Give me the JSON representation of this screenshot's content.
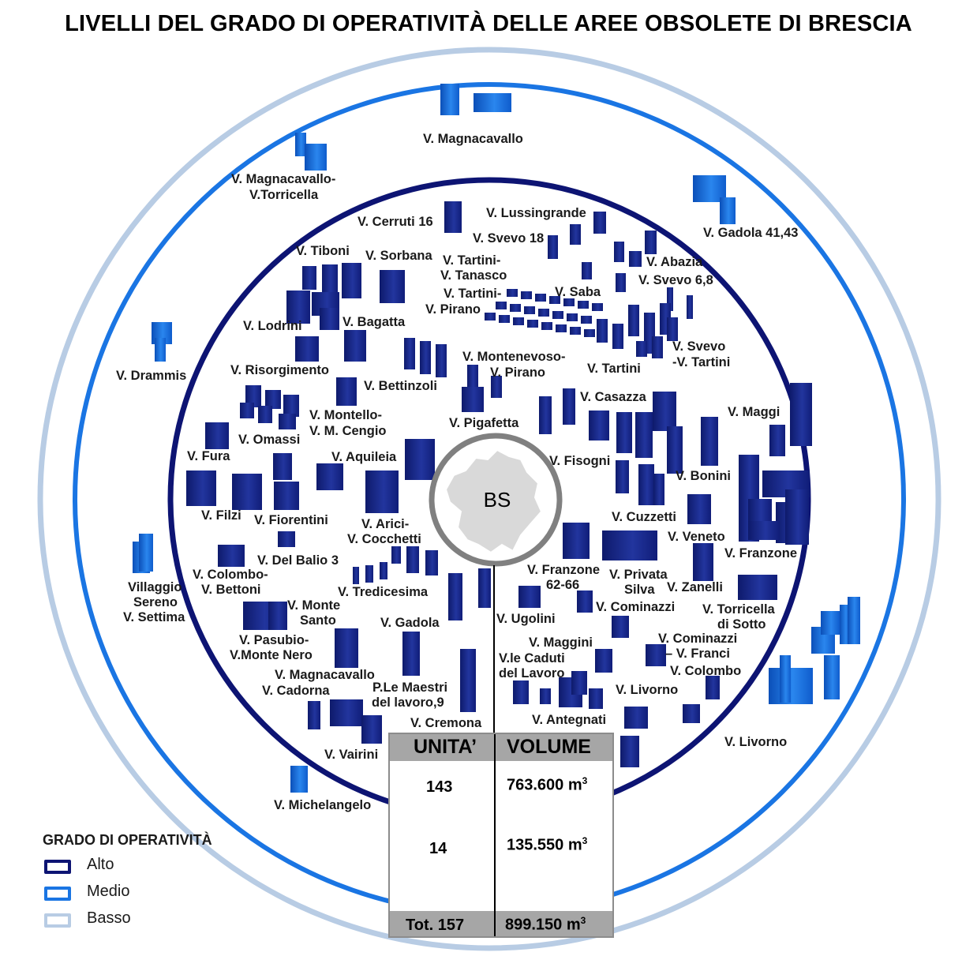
{
  "title": "LIVELLI DEL GRADO DI OPERATIVITÀ DELLE AREE OBSOLETE DI BRESCIA",
  "center_label": "BS",
  "colors": {
    "alto": "#0d1473",
    "medio": "#1a75e3",
    "basso": "#b8cce4",
    "building_dark": "#1b2a8c",
    "building_medium": "#1e6ee0",
    "center_ring": "#808080"
  },
  "rings": [
    "Alto",
    "Medio",
    "Basso"
  ],
  "labels_alto": [
    "V. Cerruti 16",
    "V. Lussingrande",
    "V. Svevo 18",
    "V. Tiboni",
    "V. Sorbana",
    "V. Tartini-",
    "V. Tanasco",
    "V. Abazia",
    "V. Svevo 6,8",
    "V. Tartini-",
    "V. Pirano",
    "V. Saba",
    "V. Lodrini",
    "V. Bagatta",
    "V. Svevo",
    "-V. Tartini",
    "V. Risorgimento",
    "V. Montenevoso-",
    "V. Pirano",
    "V. Tartini",
    "V. Bettinzoli",
    "V. Casazza",
    "V. Maggi",
    "V. Montello-",
    "V. M. Cengio",
    "V. Pigafetta",
    "V. Omassi",
    "V. Fura",
    "V. Aquileia",
    "V. Fisogni",
    "V. Bonini",
    "V. Filzi",
    "V. Fiorentini",
    "V. Arici-",
    "V. Cocchetti",
    "V. Cuzzetti",
    "V. Veneto",
    "V. Del Balio 3",
    "V. Franzone",
    "V. Colombo-",
    "V. Bettoni",
    "V. Franzone",
    "62-66",
    "V. Privata",
    "Silva",
    "V. Zanelli",
    "V. Tredicesima",
    "V. Torricella",
    "di Sotto",
    "V. Monte",
    "Santo",
    "V. Ugolini",
    "V. Cominazzi",
    "V. Gadola",
    "V. Pasubio-",
    "V.Monte Nero",
    "V. Cominazzi",
    "– V. Franci",
    "V. Maggini",
    "V.le Caduti",
    "del Lavoro",
    "V. Colombo",
    "V. Magnacavallo",
    "V. Cadorna",
    "P.Le Maestri",
    "del lavoro,9",
    "V. Livorno",
    "V. Cremona",
    "V. Antegnati",
    "V. Vairini"
  ],
  "labels_medio": [
    "V. Magnacavallo",
    "V. Magnacavallo-",
    "V.Torricella",
    "V. Gadola 41,43",
    "V. Drammis",
    "Villaggio",
    "Sereno",
    "V. Settima",
    "V. Livorno",
    "V. Michelangelo"
  ],
  "legend": {
    "title": "GRADO DI OPERATIVITÀ",
    "items": [
      {
        "label": "Alto",
        "color": "#0d1473"
      },
      {
        "label": "Medio",
        "color": "#1a75e3"
      },
      {
        "label": "Basso",
        "color": "#b8cce4"
      }
    ]
  },
  "table": {
    "headers": [
      "UNITA’",
      "VOLUME"
    ],
    "rows": [
      {
        "unita": "143",
        "volume": "763.600 m",
        "sup": "3"
      },
      {
        "unita": "14",
        "volume": "135.550 m",
        "sup": "3"
      }
    ],
    "total": {
      "unita": "Tot. 157",
      "volume": "899.150 m",
      "sup": "3"
    }
  }
}
